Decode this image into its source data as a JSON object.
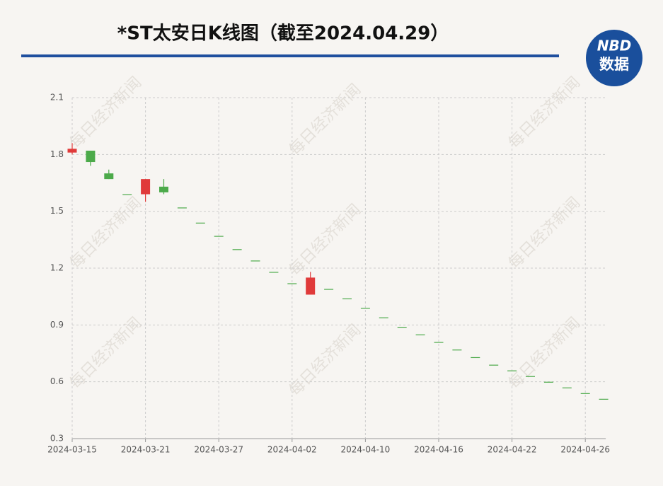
{
  "chart_data": {
    "type": "candlestick",
    "title": "*ST太安日K线图（截至2024.04.29）",
    "categories": [
      "2024-03-15",
      null,
      null,
      null,
      "2024-03-21",
      null,
      null,
      null,
      "2024-03-27",
      null,
      null,
      null,
      "2024-04-02",
      null,
      null,
      null,
      "2024-04-10",
      null,
      null,
      null,
      "2024-04-16",
      null,
      null,
      null,
      "2024-04-22",
      null,
      null,
      null,
      "2024-04-26",
      null
    ],
    "open": [
      1.81,
      1.82,
      1.7,
      1.59,
      1.59,
      1.63,
      1.52,
      1.44,
      1.37,
      1.3,
      1.24,
      1.18,
      1.12,
      1.06,
      1.09,
      1.04,
      0.99,
      0.94,
      0.89,
      0.85,
      0.81,
      0.77,
      0.73,
      0.69,
      0.66,
      0.63,
      0.6,
      0.57,
      0.54,
      0.51
    ],
    "close": [
      1.83,
      1.76,
      1.67,
      1.59,
      1.67,
      1.6,
      1.52,
      1.44,
      1.37,
      1.3,
      1.24,
      1.18,
      1.12,
      1.15,
      1.09,
      1.04,
      0.99,
      0.94,
      0.89,
      0.85,
      0.81,
      0.77,
      0.73,
      0.69,
      0.66,
      0.63,
      0.6,
      0.57,
      0.54,
      0.51
    ],
    "high": [
      1.86,
      1.82,
      1.72,
      1.59,
      1.67,
      1.67,
      1.52,
      1.44,
      1.37,
      1.3,
      1.24,
      1.18,
      1.12,
      1.18,
      1.09,
      1.04,
      0.99,
      0.94,
      0.89,
      0.85,
      0.81,
      0.77,
      0.73,
      0.69,
      0.66,
      0.63,
      0.6,
      0.57,
      0.54,
      0.51
    ],
    "low": [
      1.8,
      1.74,
      1.67,
      1.59,
      1.55,
      1.59,
      1.52,
      1.44,
      1.37,
      1.3,
      1.24,
      1.18,
      1.12,
      1.06,
      1.09,
      1.04,
      0.99,
      0.94,
      0.89,
      0.85,
      0.81,
      0.77,
      0.73,
      0.69,
      0.66,
      0.63,
      0.6,
      0.57,
      0.54,
      0.51
    ],
    "up_color": "#e03a3a",
    "down_color": "#4caa4a",
    "ylim": [
      0.3,
      2.1
    ],
    "yticks": [
      0.3,
      0.6,
      0.9,
      1.2,
      1.5,
      1.8,
      2.1
    ],
    "grid": true
  },
  "logo": {
    "top": "NBD",
    "bottom": "数据"
  },
  "watermark": "每日经济新闻"
}
